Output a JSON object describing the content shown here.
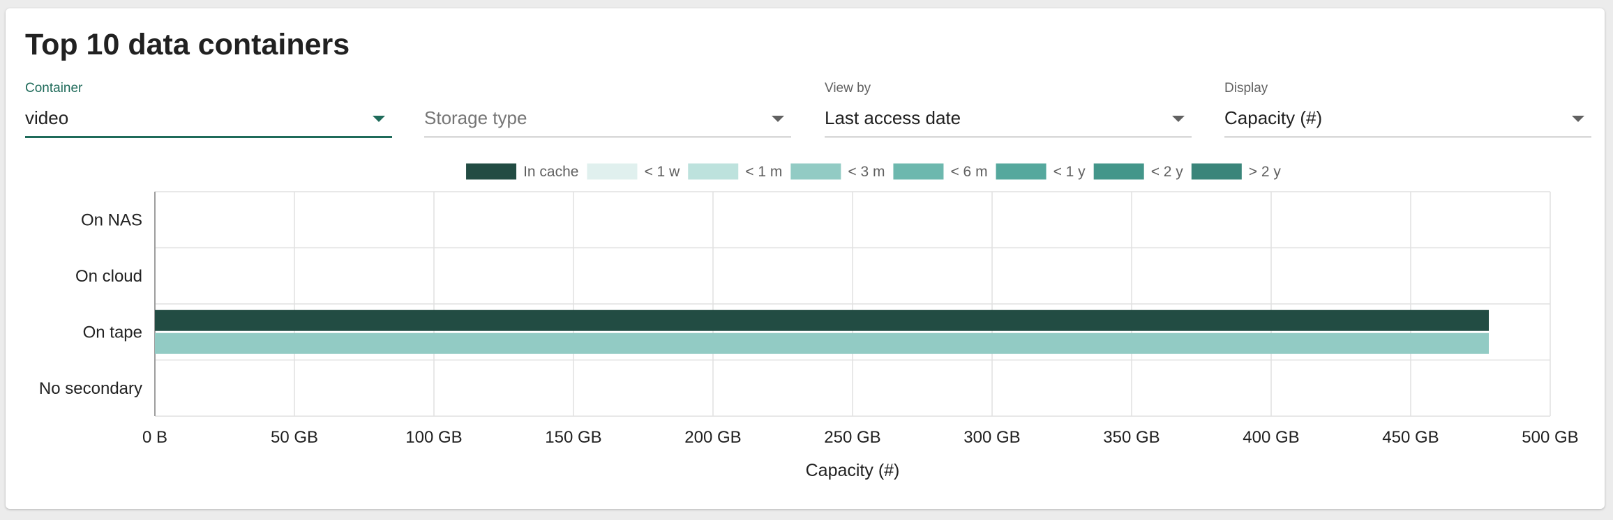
{
  "title": "Top 10 data containers",
  "filters": [
    {
      "label": "Container",
      "value": "video",
      "placeholder": "",
      "active": true
    },
    {
      "label": "",
      "value": "",
      "placeholder": "Storage type",
      "active": false
    },
    {
      "label": "View by",
      "value": "Last access date",
      "placeholder": "",
      "active": false
    },
    {
      "label": "Display",
      "value": "Capacity (#)",
      "placeholder": "",
      "active": false
    }
  ],
  "colors": {
    "accent": "#1f6b5a",
    "gridline": "#e0e0e0",
    "axis": "#9e9e9e"
  },
  "chart_data": {
    "type": "bar",
    "orientation": "horizontal",
    "categories": [
      "On NAS",
      "On cloud",
      "On tape",
      "No secondary"
    ],
    "series": [
      {
        "name": "In cache",
        "color": "#224c43",
        "values": [
          0,
          0,
          478,
          0
        ]
      },
      {
        "name": "< 1 w",
        "color": "#e0f0ee",
        "values": [
          0,
          0,
          0,
          0
        ]
      },
      {
        "name": "< 1 m",
        "color": "#bde2dd",
        "values": [
          0,
          0,
          0,
          0
        ]
      },
      {
        "name": "< 3 m",
        "color": "#92cbc4",
        "values": [
          0,
          0,
          478,
          0
        ]
      },
      {
        "name": "< 6 m",
        "color": "#6db8ae",
        "values": [
          0,
          0,
          0,
          0
        ]
      },
      {
        "name": "< 1 y",
        "color": "#55a89d",
        "values": [
          0,
          0,
          0,
          0
        ]
      },
      {
        "name": "< 2 y",
        "color": "#43968a",
        "values": [
          0,
          0,
          0,
          0
        ]
      },
      {
        "name": "> 2 y",
        "color": "#3a857a",
        "values": [
          0,
          0,
          0,
          0
        ]
      }
    ],
    "xticks": [
      "0 B",
      "50 GB",
      "100 GB",
      "150 GB",
      "200 GB",
      "250 GB",
      "300 GB",
      "350 GB",
      "400 GB",
      "450 GB",
      "500 GB"
    ],
    "xlim": [
      0,
      500
    ],
    "xunit": "GB",
    "xlabel": "Capacity (#)",
    "ylabel": "",
    "legend_position": "top",
    "grid": true
  }
}
